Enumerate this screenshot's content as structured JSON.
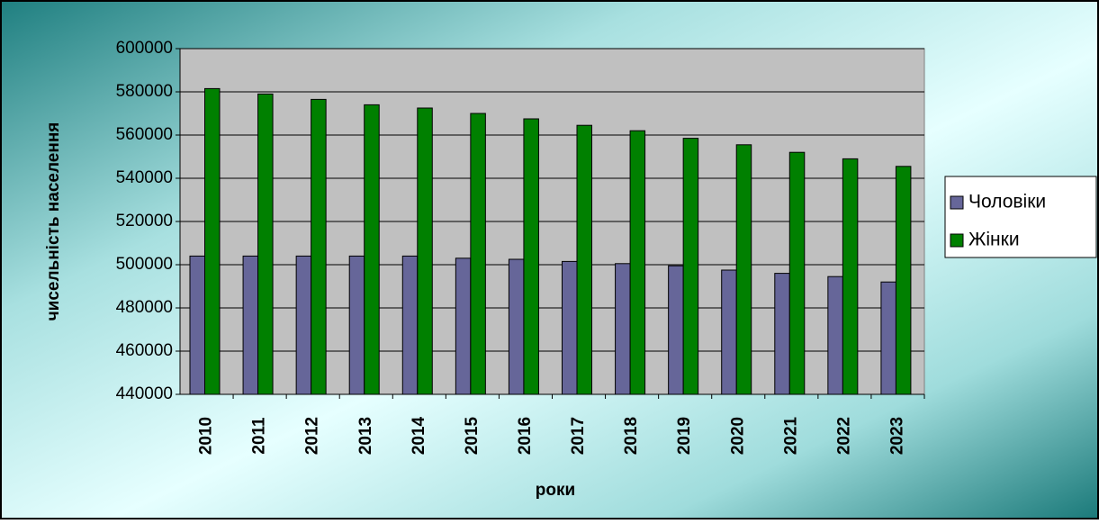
{
  "chart_data": {
    "type": "bar",
    "y_axis_label": "чисельність населення",
    "x_axis_label": "роки",
    "categories": [
      "2010",
      "2011",
      "2012",
      "2013",
      "2014",
      "2015",
      "2016",
      "2017",
      "2018",
      "2019",
      "2020",
      "2021",
      "2022",
      "2023"
    ],
    "series": [
      {
        "name": "Чоловіки",
        "color": "#666699",
        "values": [
          504000,
          504000,
          504000,
          504000,
          504000,
          503000,
          502500,
          501500,
          500500,
          499500,
          497500,
          496000,
          494500,
          492000
        ]
      },
      {
        "name": "Жінки",
        "color": "#008000",
        "values": [
          581500,
          579000,
          576500,
          574000,
          572500,
          570000,
          567500,
          564500,
          562000,
          558500,
          555500,
          552000,
          549000,
          545500
        ]
      }
    ],
    "ylim": [
      440000,
      600000
    ],
    "yticks": [
      440000,
      460000,
      480000,
      500000,
      520000,
      540000,
      560000,
      580000,
      600000
    ],
    "grid": true,
    "legend": "right"
  }
}
